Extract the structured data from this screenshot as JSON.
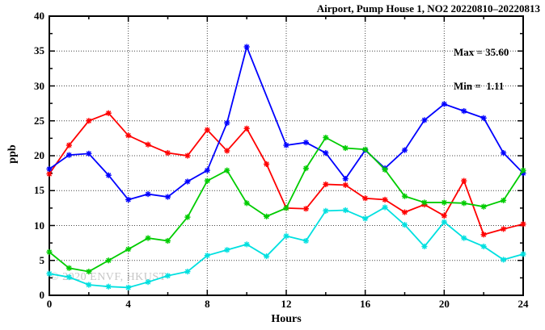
{
  "title": "Airport, Pump House 1, NO2 20220810–20220813",
  "stats": {
    "max_label": "Max = 35.60",
    "min_label": "Min =  1.11"
  },
  "watermark": "© 2020 ENVF, HKUST",
  "chart_data": {
    "type": "line",
    "title": "Airport, Pump House 1, NO2 20220810–20220813",
    "xlabel": "Hours",
    "ylabel": "ppb",
    "xlim": [
      0,
      24
    ],
    "ylim": [
      0,
      40
    ],
    "x_major_ticks": [
      0,
      4,
      8,
      12,
      16,
      20,
      24
    ],
    "x_minor_step": 2,
    "y_major_ticks": [
      0,
      5,
      10,
      15,
      20,
      25,
      30,
      35,
      40
    ],
    "y_minor_step": 2.5,
    "grid": true,
    "legend": "none",
    "marker": "asterisk",
    "max": 35.6,
    "min": 1.11,
    "x": [
      0,
      1,
      2,
      3,
      4,
      5,
      6,
      7,
      8,
      9,
      10,
      11,
      12,
      13,
      14,
      15,
      16,
      17,
      18,
      19,
      20,
      21,
      22,
      23,
      24
    ],
    "series": [
      {
        "name": "red",
        "color": "#ff0000",
        "values": [
          17.4,
          21.5,
          25.0,
          26.1,
          22.9,
          21.6,
          20.4,
          20.0,
          23.7,
          20.7,
          23.9,
          18.8,
          12.5,
          12.4,
          15.9,
          15.8,
          13.9,
          13.7,
          11.9,
          13.0,
          11.4,
          16.4,
          8.7,
          9.5,
          10.2
        ]
      },
      {
        "name": "blue",
        "color": "#0000ff",
        "values": [
          18.1,
          20.1,
          20.3,
          17.2,
          13.7,
          14.5,
          14.1,
          16.3,
          17.9,
          24.7,
          35.6,
          null,
          21.5,
          21.9,
          20.4,
          16.7,
          20.8,
          18.2,
          20.8,
          25.1,
          27.4,
          26.4,
          25.4,
          20.4,
          17.5
        ]
      },
      {
        "name": "green",
        "color": "#00cc00",
        "values": [
          6.2,
          3.9,
          3.4,
          5.0,
          6.6,
          8.2,
          7.8,
          11.2,
          16.4,
          17.9,
          13.2,
          11.3,
          12.5,
          18.2,
          22.6,
          21.1,
          20.9,
          18.0,
          14.2,
          13.3,
          13.3,
          13.2,
          12.7,
          13.6,
          17.9
        ]
      },
      {
        "name": "cyan",
        "color": "#00e0e0",
        "values": [
          3.1,
          2.6,
          1.5,
          1.25,
          1.11,
          1.9,
          2.8,
          3.4,
          5.7,
          6.5,
          7.3,
          5.6,
          8.5,
          7.8,
          12.1,
          12.2,
          11.0,
          12.6,
          10.1,
          7.0,
          10.5,
          8.2,
          7.0,
          5.1,
          5.9
        ]
      }
    ]
  }
}
